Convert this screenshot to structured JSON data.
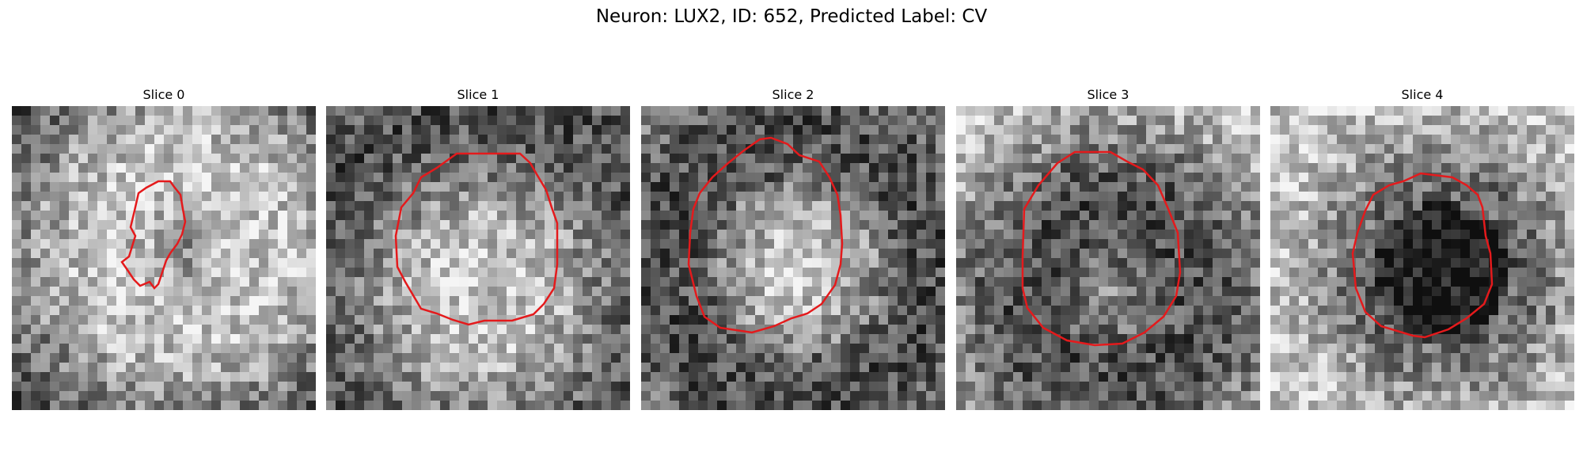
{
  "figure": {
    "title": "Neuron: LUX2, ID: 652, Predicted Label: CV"
  },
  "panels": [
    {
      "title": "Slice 0"
    },
    {
      "title": "Slice 1"
    },
    {
      "title": "Slice 2"
    },
    {
      "title": "Slice 3"
    },
    {
      "title": "Slice 4"
    }
  ],
  "colors": {
    "contour": "#e41a1c",
    "background": "#ffffff"
  }
}
